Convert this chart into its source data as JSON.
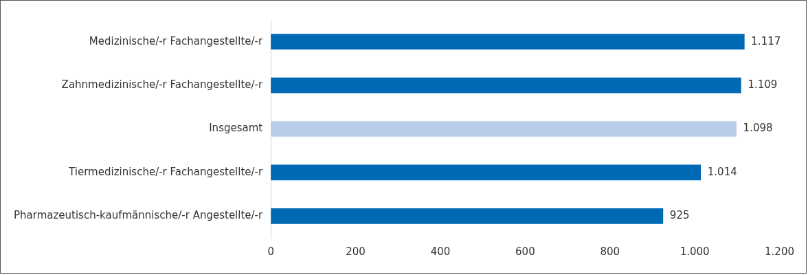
{
  "chart_data": {
    "type": "bar",
    "orientation": "horizontal",
    "categories": [
      "Medizinische/-r Fachangestellte/-r",
      "Zahnmedizinische/-r Fachangestellte/-r",
      "Insgesamt",
      "Tiermedizinische/-r Fachangestellte/-r",
      "Pharmazeutisch-kaufmännische/-r Angestellte/-r"
    ],
    "values": [
      1117,
      1109,
      1098,
      1014,
      925
    ],
    "colors": [
      "#0069b4",
      "#0069b4",
      "#b9cce9",
      "#0069b4",
      "#0069b4"
    ],
    "value_labels": [
      "1.117",
      "1.109",
      "1.098",
      "1.014",
      "925"
    ],
    "xlim": [
      0,
      1200
    ],
    "xticks": [
      0,
      200,
      400,
      600,
      800,
      {
        "value": 1000,
        "label": "1.000"
      },
      {
        "value": 1200,
        "label": "1.200"
      }
    ],
    "grid": false,
    "legend": false
  }
}
